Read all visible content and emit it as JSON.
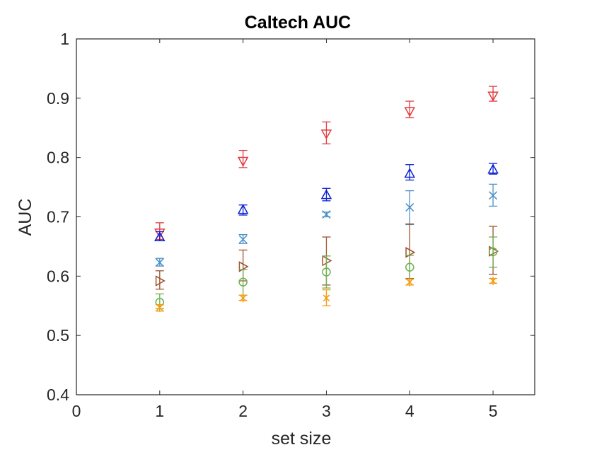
{
  "chart_data": {
    "type": "scatter",
    "title": "Caltech AUC",
    "xlabel": "set size",
    "ylabel": "AUC",
    "xlim": [
      0,
      5.5
    ],
    "ylim": [
      0.4,
      1
    ],
    "xticks": [
      "0",
      "1",
      "2",
      "3",
      "4",
      "5"
    ],
    "yticks": [
      "0.4",
      "0.5",
      "0.6",
      "0.7",
      "0.8",
      "0.9",
      "1"
    ],
    "grid": false,
    "x": [
      1,
      2,
      3,
      4,
      5
    ],
    "series": [
      {
        "marker": "triangle-down",
        "color": "#e0393e",
        "values": [
          0.673,
          0.794,
          0.84,
          0.878,
          0.904
        ],
        "err_low": [
          0.662,
          0.783,
          0.823,
          0.867,
          0.895
        ],
        "err_high": [
          0.69,
          0.812,
          0.86,
          0.895,
          0.92
        ]
      },
      {
        "marker": "triangle-up",
        "color": "#0a1fd1",
        "values": [
          0.666,
          0.712,
          0.737,
          0.773,
          0.78
        ],
        "err_low": [
          0.66,
          0.703,
          0.727,
          0.762,
          0.772
        ],
        "err_high": [
          0.675,
          0.72,
          0.748,
          0.788,
          0.79
        ]
      },
      {
        "marker": "x",
        "color": "#4a90c8",
        "values": [
          0.623,
          0.662,
          0.704,
          0.716,
          0.736
        ],
        "err_low": [
          0.617,
          0.655,
          0.7,
          0.687,
          0.718
        ],
        "err_high": [
          0.63,
          0.67,
          0.708,
          0.744,
          0.755
        ]
      },
      {
        "marker": "triangle-right",
        "color": "#a0522d",
        "values": [
          0.592,
          0.616,
          0.626,
          0.64,
          0.642
        ],
        "err_low": [
          0.578,
          0.592,
          0.585,
          0.596,
          0.603
        ],
        "err_high": [
          0.609,
          0.644,
          0.666,
          0.688,
          0.684
        ]
      },
      {
        "marker": "circle",
        "color": "#6ab04c",
        "values": [
          0.556,
          0.59,
          0.607,
          0.615,
          0.641
        ],
        "err_low": [
          0.545,
          0.568,
          0.58,
          0.595,
          0.615
        ],
        "err_high": [
          0.57,
          0.611,
          0.634,
          0.635,
          0.666
        ]
      },
      {
        "marker": "asterisk",
        "color": "#f39c12",
        "values": [
          0.547,
          0.563,
          0.563,
          0.59,
          0.592
        ],
        "err_low": [
          0.541,
          0.559,
          0.55,
          0.585,
          0.588
        ],
        "err_high": [
          0.552,
          0.568,
          0.577,
          0.595,
          0.596
        ]
      }
    ]
  }
}
